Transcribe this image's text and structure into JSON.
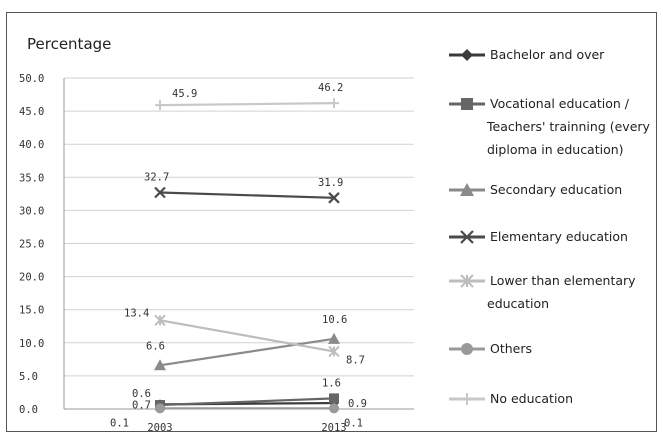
{
  "chart_data": {
    "type": "line",
    "title": "",
    "ylabel": "Percentage",
    "xlabel": "",
    "x": [
      "2003",
      "2013"
    ],
    "ylim": [
      0,
      50
    ],
    "yticks": [
      "0.0",
      "5.0",
      "10.0",
      "15.0",
      "20.0",
      "25.0",
      "30.0",
      "35.0",
      "40.0",
      "45.0",
      "50.0"
    ],
    "grid": true,
    "legend_position": "right",
    "series": [
      {
        "name": "Bachelor and over",
        "values": [
          0.7,
          0.9
        ],
        "labels": [
          "0.7",
          "0.9"
        ],
        "color": "#3a3a3a",
        "marker": "diamond"
      },
      {
        "name": "Vocational education / Teachers' trainning (every diploma in education)",
        "legend_lines": [
          "Vocational education /",
          "Teachers' trainning (every",
          "diploma in education)"
        ],
        "values": [
          0.6,
          1.6
        ],
        "labels": [
          "0.6",
          "1.6"
        ],
        "color": "#666666",
        "marker": "square"
      },
      {
        "name": "Secondary education",
        "values": [
          6.6,
          10.6
        ],
        "labels": [
          "6.6",
          "10.6"
        ],
        "color": "#8a8a8a",
        "marker": "triangle"
      },
      {
        "name": "Elementary education",
        "values": [
          32.7,
          31.9
        ],
        "labels": [
          "32.7",
          "31.9"
        ],
        "color": "#4a4a4a",
        "marker": "x"
      },
      {
        "name": "Lower than elementary education",
        "legend_lines": [
          "Lower than elementary",
          "education"
        ],
        "values": [
          13.4,
          8.7
        ],
        "labels": [
          "13.4",
          "8.7"
        ],
        "color": "#bdbdbd",
        "marker": "star"
      },
      {
        "name": "Others",
        "values": [
          0.1,
          0.1
        ],
        "labels": [
          "0.1",
          "0.1"
        ],
        "color": "#9a9a9a",
        "marker": "circle"
      },
      {
        "name": "No education",
        "values": [
          45.9,
          46.2
        ],
        "labels": [
          "45.9",
          "46.2"
        ],
        "color": "#c8c8c8",
        "marker": "plus"
      }
    ]
  }
}
